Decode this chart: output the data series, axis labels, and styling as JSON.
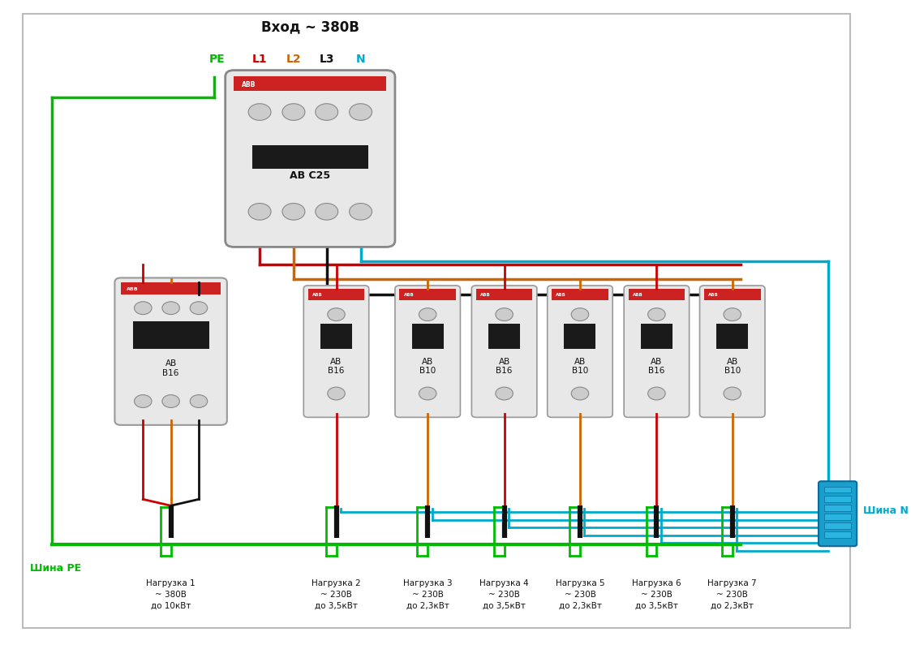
{
  "title": "Вход ~ 380В",
  "bg_color": "#ffffff",
  "wire_colors": {
    "PE": "#00bb00",
    "L1": "#cc0000",
    "L2": "#cc6600",
    "L3": "#111111",
    "N": "#00aacc"
  },
  "shina_PE_label": "Шина РЕ",
  "shina_N_label": "Шина N",
  "sp_labels": [
    "АВ\nВ16",
    "АВ\nВ10",
    "АВ\nВ16",
    "АВ\nВ10",
    "АВ\nВ16",
    "АВ\nВ10"
  ],
  "loads": [
    "Нагрузка 1\n~ 380В\nдо 10кВт",
    "Нагрузка 2\n~ 230В\nдо 3,5кВт",
    "Нагрузка 3\n~ 230В\nдо 2,3кВт",
    "Нагрузка 4\n~ 230В\nдо 3,5кВт",
    "Нагрузка 5\n~ 230В\nдо 2,3кВт",
    "Нагрузка 6\n~ 230В\nдо 3,5кВт",
    "Нагрузка 7\n~ 230В\nдо 2,3кВт"
  ],
  "sp_phases": [
    "L1",
    "L2",
    "L1",
    "L2",
    "L1",
    "L2"
  ],
  "lw_thick": 2.5,
  "lw_wire": 2.0
}
